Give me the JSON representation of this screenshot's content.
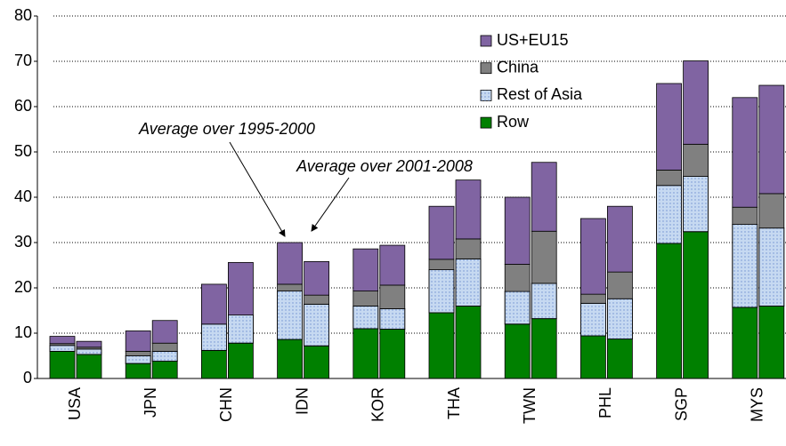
{
  "chart_data": {
    "type": "grouped-stacked-bar",
    "categories": [
      "USA",
      "JPN",
      "CHN",
      "IDN",
      "KOR",
      "THA",
      "TWN",
      "PHL",
      "SGP",
      "MYS"
    ],
    "series": [
      {
        "name": "Row",
        "color": "#008000",
        "values": [
          [
            6,
            5.3
          ],
          [
            3.3,
            3.8
          ],
          [
            6.2,
            7.8
          ],
          [
            8.6,
            7.2
          ],
          [
            11,
            10.9
          ],
          [
            14.5,
            16
          ],
          [
            12,
            13.2
          ],
          [
            9.4,
            8.7
          ],
          [
            29.8,
            32.4
          ],
          [
            15.7,
            16
          ]
        ]
      },
      {
        "name": "Rest of Asia",
        "color": "#c6d9f1",
        "values": [
          [
            1.3,
            1.2
          ],
          [
            1.7,
            2.2
          ],
          [
            5.8,
            6.2
          ],
          [
            10.7,
            9.2
          ],
          [
            5,
            4.5
          ],
          [
            9.5,
            10.4
          ],
          [
            7.2,
            7.8
          ],
          [
            7.2,
            8.9
          ],
          [
            12.8,
            12.2
          ],
          [
            18.3,
            17.2
          ]
        ]
      },
      {
        "name": "China",
        "color": "#808080",
        "values": [
          [
            0.4,
            0.4
          ],
          [
            1,
            1.8
          ],
          [
            0,
            0
          ],
          [
            1.5,
            2
          ],
          [
            3.3,
            5.2
          ],
          [
            2.3,
            4.4
          ],
          [
            6,
            11.5
          ],
          [
            2,
            5.9
          ],
          [
            3.4,
            7.1
          ],
          [
            3.8,
            7.6
          ]
        ]
      },
      {
        "name": "US+EU15",
        "color": "#8064a2",
        "values": [
          [
            1.6,
            1.3
          ],
          [
            4.5,
            5
          ],
          [
            8.8,
            11.6
          ],
          [
            9.2,
            7.4
          ],
          [
            9.3,
            8.8
          ],
          [
            11.7,
            13
          ],
          [
            14.8,
            15.2
          ],
          [
            16.7,
            14.5
          ],
          [
            19.1,
            18.4
          ],
          [
            24.2,
            23.9
          ]
        ]
      }
    ],
    "annotations": [
      "Average over 1995-2000",
      "Average over 2001-2008"
    ],
    "ylim": [
      0,
      80
    ],
    "yticks": [
      0,
      10,
      20,
      30,
      40,
      50,
      60,
      70,
      80
    ],
    "grid": true,
    "legend": "top-right"
  }
}
